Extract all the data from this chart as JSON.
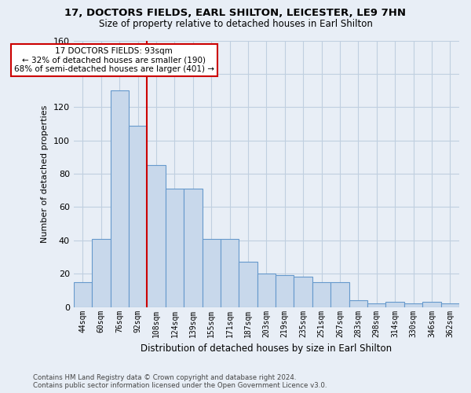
{
  "title": "17, DOCTORS FIELDS, EARL SHILTON, LEICESTER, LE9 7HN",
  "subtitle": "Size of property relative to detached houses in Earl Shilton",
  "xlabel": "Distribution of detached houses by size in Earl Shilton",
  "ylabel": "Number of detached properties",
  "categories": [
    "44sqm",
    "60sqm",
    "76sqm",
    "92sqm",
    "108sqm",
    "124sqm",
    "139sqm",
    "155sqm",
    "171sqm",
    "187sqm",
    "203sqm",
    "219sqm",
    "235sqm",
    "251sqm",
    "267sqm",
    "283sqm",
    "298sqm",
    "314sqm",
    "330sqm",
    "346sqm",
    "362sqm"
  ],
  "values": [
    15,
    41,
    130,
    109,
    85,
    71,
    71,
    41,
    41,
    27,
    20,
    19,
    18,
    15,
    15,
    4,
    2,
    3,
    2,
    3,
    2
  ],
  "bar_color": "#c8d8eb",
  "bar_edge_color": "#6699cc",
  "grid_color": "#c0cfe0",
  "background_color": "#e8eef6",
  "vline_color": "#cc0000",
  "vline_pos": 3.5,
  "annotation_line1": "17 DOCTORS FIELDS: 93sqm",
  "annotation_line2": "← 32% of detached houses are smaller (190)",
  "annotation_line3": "68% of semi-detached houses are larger (401) →",
  "annotation_box_color": "#ffffff",
  "annotation_box_edge": "#cc0000",
  "footer1": "Contains HM Land Registry data © Crown copyright and database right 2024.",
  "footer2": "Contains public sector information licensed under the Open Government Licence v3.0.",
  "ylim": [
    0,
    160
  ],
  "yticks": [
    0,
    20,
    40,
    60,
    80,
    100,
    120,
    140,
    160
  ]
}
